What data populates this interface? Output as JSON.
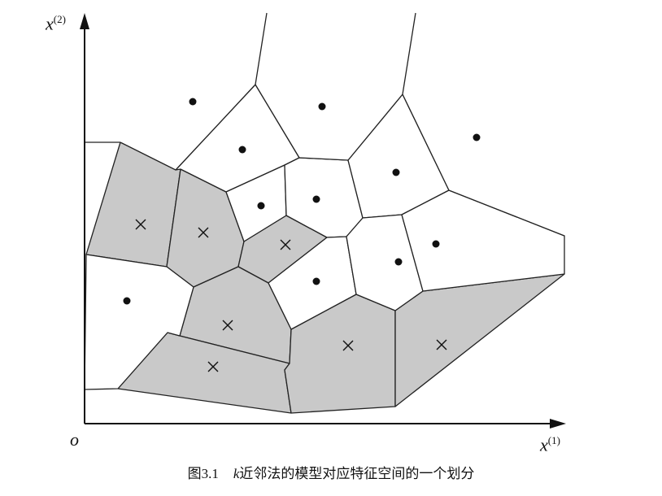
{
  "axes": {
    "x_label": "x",
    "x_sup": "(1)",
    "y_label": "x",
    "y_sup": "(2)",
    "origin_label": "o"
  },
  "caption": {
    "number": "图3.1",
    "k": "k",
    "text": "近邻法的模型对应特征空间的一个划分"
  },
  "colors": {
    "shaded_cell": "#c9c9c9",
    "white_cell": "#ffffff",
    "edge": "#222222",
    "marker": "#111111"
  },
  "legend_of_markers": {
    "dot": "filled-circle instance",
    "cross": "cross instance"
  },
  "cells": [
    {
      "class": "cross",
      "points": [
        [
          148,
          175
        ],
        [
          222,
          208
        ],
        [
          205,
          328
        ],
        [
          106,
          313
        ]
      ]
    },
    {
      "class": "cross",
      "points": [
        [
          222,
          208
        ],
        [
          278,
          236
        ],
        [
          300,
          297
        ],
        [
          293,
          328
        ],
        [
          238,
          353
        ],
        [
          205,
          328
        ]
      ]
    },
    {
      "class": "cross",
      "points": [
        [
          300,
          297
        ],
        [
          352,
          265
        ],
        [
          402,
          292
        ],
        [
          330,
          348
        ],
        [
          293,
          328
        ]
      ]
    },
    {
      "class": "cross",
      "points": [
        [
          238,
          353
        ],
        [
          293,
          328
        ],
        [
          330,
          348
        ],
        [
          358,
          405
        ],
        [
          356,
          447
        ],
        [
          221,
          413
        ]
      ]
    },
    {
      "class": "cross",
      "points": [
        [
          206,
          409
        ],
        [
          221,
          413
        ],
        [
          356,
          447
        ],
        [
          350,
          455
        ],
        [
          358,
          508
        ],
        [
          145,
          478
        ]
      ]
    },
    {
      "class": "cross",
      "points": [
        [
          358,
          405
        ],
        [
          438,
          362
        ],
        [
          486,
          382
        ],
        [
          486,
          500
        ],
        [
          358,
          508
        ],
        [
          350,
          455
        ],
        [
          356,
          447
        ]
      ]
    },
    {
      "class": "cross",
      "points": [
        [
          486,
          382
        ],
        [
          520,
          358
        ],
        [
          694,
          337
        ],
        [
          486,
          500
        ]
      ]
    },
    {
      "class": "dot",
      "points": [
        [
          106,
          313
        ],
        [
          205,
          328
        ],
        [
          238,
          353
        ],
        [
          221,
          413
        ],
        [
          206,
          409
        ],
        [
          145,
          478
        ],
        [
          104,
          479
        ]
      ]
    },
    {
      "class": "dot",
      "points": [
        [
          216,
          209
        ],
        [
          314,
          104
        ],
        [
          368,
          194
        ],
        [
          350,
          203
        ],
        [
          278,
          236
        ],
        [
          222,
          208
        ]
      ]
    },
    {
      "class": "dot",
      "points": [
        [
          278,
          236
        ],
        [
          350,
          203
        ],
        [
          352,
          265
        ],
        [
          300,
          297
        ]
      ]
    },
    {
      "class": "dot",
      "points": [
        [
          350,
          203
        ],
        [
          368,
          194
        ],
        [
          428,
          197
        ],
        [
          446,
          268
        ],
        [
          426,
          291
        ],
        [
          402,
          292
        ],
        [
          352,
          265
        ]
      ]
    },
    {
      "class": "dot",
      "points": [
        [
          428,
          197
        ],
        [
          495,
          116
        ],
        [
          552,
          234
        ],
        [
          494,
          264
        ],
        [
          446,
          268
        ]
      ]
    },
    {
      "class": "dot",
      "points": [
        [
          330,
          348
        ],
        [
          402,
          292
        ],
        [
          426,
          291
        ],
        [
          438,
          362
        ],
        [
          358,
          405
        ]
      ]
    },
    {
      "class": "dot",
      "points": [
        [
          426,
          291
        ],
        [
          446,
          268
        ],
        [
          494,
          264
        ],
        [
          520,
          358
        ],
        [
          486,
          382
        ],
        [
          438,
          362
        ]
      ]
    },
    {
      "class": "dot",
      "points": [
        [
          494,
          264
        ],
        [
          552,
          234
        ],
        [
          694,
          290
        ],
        [
          694,
          337
        ],
        [
          520,
          358
        ]
      ]
    },
    {
      "class": "dot",
      "points": [
        [
          104,
          175
        ],
        [
          106,
          38
        ],
        [
          314,
          38
        ],
        [
          314,
          104
        ],
        [
          216,
          209
        ],
        [
          148,
          175
        ]
      ]
    },
    {
      "class": "dot",
      "points": [
        [
          314,
          104
        ],
        [
          330,
          38
        ],
        [
          510,
          38
        ],
        [
          495,
          116
        ],
        [
          428,
          197
        ],
        [
          368,
          194
        ]
      ]
    },
    {
      "class": "dot",
      "points": [
        [
          495,
          116
        ],
        [
          510,
          38
        ],
        [
          694,
          38
        ],
        [
          694,
          290
        ],
        [
          552,
          234
        ]
      ]
    }
  ],
  "extra_edges": [
    [
      [
        314,
        104
      ],
      [
        328,
        16
      ]
    ],
    [
      [
        495,
        116
      ],
      [
        511,
        16
      ]
    ]
  ],
  "dots": [
    [
      237,
      125
    ],
    [
      396,
      131
    ],
    [
      586,
      169
    ],
    [
      298,
      184
    ],
    [
      487,
      212
    ],
    [
      321,
      253
    ],
    [
      389,
      245
    ],
    [
      536,
      300
    ],
    [
      490,
      322
    ],
    [
      389,
      346
    ],
    [
      156,
      370
    ]
  ],
  "crosses": [
    [
      173,
      276
    ],
    [
      250,
      286
    ],
    [
      351,
      301
    ],
    [
      280,
      400
    ],
    [
      262,
      451
    ],
    [
      428,
      425
    ],
    [
      543,
      424
    ]
  ]
}
